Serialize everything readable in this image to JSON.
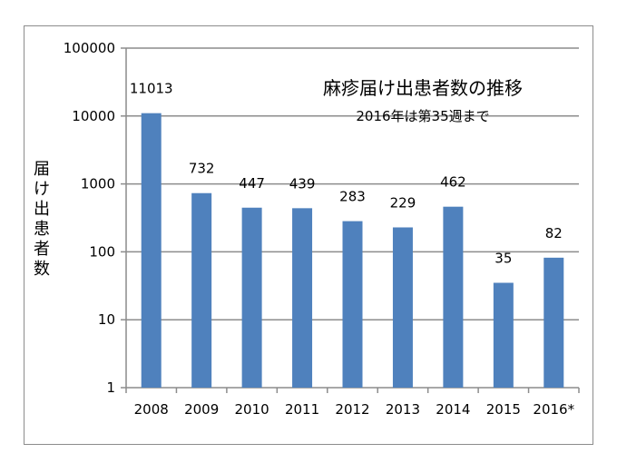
{
  "chart_data": {
    "type": "bar",
    "title": "麻疹届け出患者数の推移",
    "subtitle": "2016年は第35週まで",
    "ylabel": "届け出患者数",
    "xlabel": "",
    "yscale": "log",
    "ylim": [
      1,
      100000
    ],
    "yticks": [
      "1",
      "10",
      "100",
      "1000",
      "10000",
      "100000"
    ],
    "categories": [
      "2008",
      "2009",
      "2010",
      "2011",
      "2012",
      "2013",
      "2014",
      "2015",
      "2016*"
    ],
    "values": [
      11013,
      732,
      447,
      439,
      283,
      229,
      462,
      35,
      82
    ],
    "data_labels": [
      "11013",
      "732",
      "447",
      "439",
      "283",
      "229",
      "462",
      "35",
      "82"
    ],
    "bar_color": "#4f81bd",
    "grid": true,
    "legend": "none"
  }
}
